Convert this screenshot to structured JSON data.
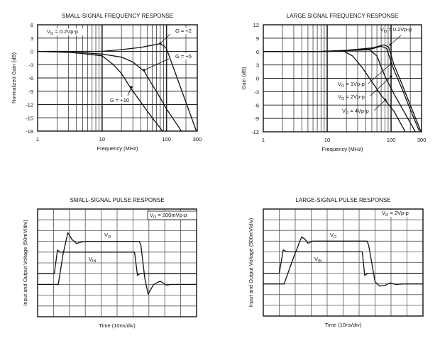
{
  "chart_data": [
    {
      "type": "line",
      "title": "SMALL-SIGNAL FREQUENCY RESPONSE",
      "xlabel": "Frequency (MHz)",
      "ylabel": "Normalized Gain (dB)",
      "xscale": "log",
      "xlim": [
        1,
        300
      ],
      "ylim": [
        -18,
        6
      ],
      "xticks": [
        "1",
        "10",
        "100",
        "300"
      ],
      "yticks": [
        "6",
        "3",
        "0",
        "-3",
        "-6",
        "-9",
        "-12",
        "-15",
        "-18"
      ],
      "grid": true,
      "condition": {
        "v": "V",
        "sub": "O",
        "rest": " = 0.2Vp-p"
      },
      "series": [
        {
          "name": "G = +2",
          "points": [
            [
              1,
              0
            ],
            [
              3,
              0
            ],
            [
              10,
              0
            ],
            [
              20,
              0.4
            ],
            [
              40,
              0.9
            ],
            [
              60,
              1.4
            ],
            [
              78,
              1.7
            ],
            [
              90,
              1.3
            ],
            [
              100,
              0.6
            ],
            [
              150,
              -6.5
            ],
            [
              200,
              -11.5
            ],
            [
              290,
              -18
            ]
          ]
        },
        {
          "name": "G = +5",
          "points": [
            [
              1,
              0
            ],
            [
              5,
              -0.3
            ],
            [
              10,
              -0.6
            ],
            [
              20,
              -1.3
            ],
            [
              30,
              -2.4
            ],
            [
              45,
              -4.5
            ],
            [
              57,
              -7
            ],
            [
              73,
              -9.5
            ],
            [
              100,
              -13
            ],
            [
              170,
              -18
            ]
          ]
        },
        {
          "name": "G = +10",
          "points": [
            [
              1,
              0
            ],
            [
              3,
              -0.2
            ],
            [
              5,
              -0.5
            ],
            [
              10,
              -1
            ],
            [
              15,
              -3
            ],
            [
              20,
              -5
            ],
            [
              27,
              -8
            ],
            [
              40,
              -11.5
            ],
            [
              60,
              -15
            ],
            [
              87,
              -18
            ]
          ]
        }
      ]
    },
    {
      "type": "line",
      "title": "LARGE SIGNAL FREQUENCY RESPONSE",
      "xlabel": "Frequency (MHz)",
      "ylabel": "Gain (dB)",
      "xscale": "log",
      "xlim": [
        1,
        300
      ],
      "ylim": [
        -12,
        12
      ],
      "xticks": [
        "1",
        "10",
        "100",
        "300"
      ],
      "yticks": [
        "12",
        "9",
        "6",
        "3",
        "0",
        "-3",
        "-6",
        "-9",
        "-12"
      ],
      "grid": true,
      "series": [
        {
          "name": "V",
          "sub": "O",
          "rest": " = 0.2Vp-p",
          "points": [
            [
              1,
              6
            ],
            [
              7,
              6
            ],
            [
              20,
              6.3
            ],
            [
              50,
              6.8
            ],
            [
              78,
              7.5
            ],
            [
              92,
              7
            ],
            [
              110,
              3.2
            ],
            [
              150,
              -1.5
            ],
            [
              200,
              -6
            ],
            [
              295,
              -12
            ]
          ]
        },
        {
          "name": "V",
          "sub": "O",
          "rest": " = 1Vp-p",
          "points": [
            [
              1,
              6
            ],
            [
              7,
              6
            ],
            [
              20,
              6.2
            ],
            [
              50,
              6.6
            ],
            [
              70,
              7.2
            ],
            [
              85,
              6.7
            ],
            [
              110,
              2
            ],
            [
              150,
              -2.5
            ],
            [
              200,
              -7
            ],
            [
              280,
              -12
            ]
          ]
        },
        {
          "name": "V",
          "sub": "O",
          "rest": " = 2Vp-p",
          "points": [
            [
              1,
              6
            ],
            [
              7,
              6
            ],
            [
              20,
              6.2
            ],
            [
              46,
              6.4
            ],
            [
              60,
              5
            ],
            [
              80,
              0.5
            ],
            [
              110,
              -3.4
            ],
            [
              160,
              -7.5
            ],
            [
              240,
              -12
            ]
          ]
        },
        {
          "name": "V",
          "sub": "O",
          "rest": " = 4Vp-p",
          "points": [
            [
              1,
              6
            ],
            [
              7,
              6
            ],
            [
              18,
              6.1
            ],
            [
              25,
              5
            ],
            [
              35,
              2.5
            ],
            [
              46,
              0
            ],
            [
              70,
              -3.8
            ],
            [
              110,
              -7.3
            ],
            [
              167,
              -12
            ]
          ]
        }
      ]
    },
    {
      "type": "line",
      "title": "SMALL-SIGNAL PULSE RESPONSE",
      "xlabel": "Time (10ns/div)",
      "ylabel": "Input and Output Voltage (50mV/div)",
      "xlim": [
        0,
        10
      ],
      "ylim": [
        0,
        10
      ],
      "grid": true,
      "condition": {
        "v": "V",
        "sub": "O",
        "rest": " = 200mVp-p"
      },
      "series": [
        {
          "name": "V",
          "sub": "IN",
          "points": [
            [
              0,
              4
            ],
            [
              1.05,
              4
            ],
            [
              1.25,
              6.2
            ],
            [
              1.4,
              6
            ],
            [
              6.1,
              6
            ],
            [
              6.28,
              3.85
            ],
            [
              6.45,
              4
            ],
            [
              10,
              4
            ]
          ]
        },
        {
          "name": "V",
          "sub": "O",
          "points": [
            [
              0,
              3
            ],
            [
              1.3,
              3
            ],
            [
              1.6,
              5.8
            ],
            [
              1.9,
              7.8
            ],
            [
              2.15,
              7.2
            ],
            [
              2.45,
              6.8
            ],
            [
              2.8,
              6.95
            ],
            [
              3.1,
              7
            ],
            [
              6.4,
              7
            ],
            [
              6.5,
              6.6
            ],
            [
              6.75,
              3.5
            ],
            [
              6.95,
              2.1
            ],
            [
              7.3,
              3
            ],
            [
              7.7,
              3.3
            ],
            [
              8.1,
              2.95
            ],
            [
              8.4,
              3
            ],
            [
              10,
              3
            ]
          ]
        }
      ]
    },
    {
      "type": "line",
      "title": "LARGE-SIGNAL PULSE RESPONSE",
      "xlabel": "Time (10ns/div)",
      "ylabel": "Input and Output Voltage (500mV/div)",
      "xlim": [
        0,
        10
      ],
      "ylim": [
        0,
        10
      ],
      "grid": true,
      "condition": {
        "v": "V",
        "sub": "O",
        "rest": " = 2Vp-p"
      },
      "series": [
        {
          "name": "V",
          "sub": "IN",
          "points": [
            [
              0,
              4
            ],
            [
              1.0,
              4
            ],
            [
              1.25,
              6.2
            ],
            [
              1.45,
              6
            ],
            [
              6.2,
              6
            ],
            [
              6.35,
              3.8
            ],
            [
              6.55,
              4
            ],
            [
              10,
              4
            ]
          ]
        },
        {
          "name": "V",
          "sub": "O",
          "points": [
            [
              0,
              3
            ],
            [
              1.3,
              3
            ],
            [
              1.9,
              5.5
            ],
            [
              2.4,
              7.4
            ],
            [
              2.6,
              7.2
            ],
            [
              2.8,
              6.8
            ],
            [
              3.1,
              7
            ],
            [
              6.5,
              7
            ],
            [
              6.6,
              6.6
            ],
            [
              7.0,
              3.2
            ],
            [
              7.3,
              2.8
            ],
            [
              7.6,
              2.85
            ],
            [
              7.95,
              3.1
            ],
            [
              8.3,
              2.95
            ],
            [
              8.8,
              3
            ],
            [
              10,
              3
            ]
          ]
        }
      ]
    }
  ]
}
